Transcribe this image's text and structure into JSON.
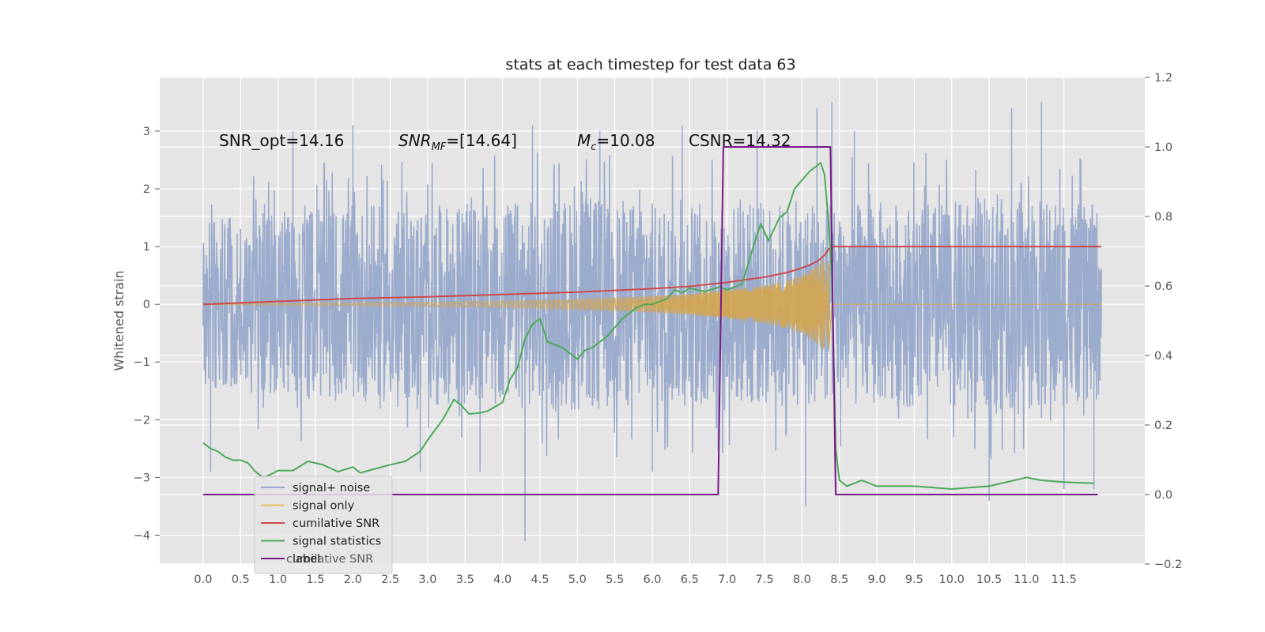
{
  "chart_data": {
    "type": "line",
    "title": "stats at each timestep for test data 63",
    "ylabel": "Whitened strain",
    "ylabel_right": "",
    "xlabel": "",
    "xlim": [
      -0.58,
      12.58
    ],
    "ylim": [
      -4.5,
      3.93
    ],
    "ylim_right": [
      -0.2,
      1.2
    ],
    "x_ticks": [
      "0.0",
      "0.5",
      "1.0",
      "1.5",
      "2.0",
      "2.5",
      "3.0",
      "3.5",
      "4.0",
      "4.5",
      "5.0",
      "5.5",
      "6.0",
      "6.5",
      "7.0",
      "7.5",
      "8.0",
      "8.5",
      "9.0",
      "9.5",
      "10.0",
      "10.5",
      "11.0",
      "11.5"
    ],
    "y_ticks": [
      "−4",
      "−3",
      "−2",
      "−1",
      "0",
      "1",
      "2",
      "3"
    ],
    "y_ticks_right": [
      "−0.2",
      "0.0",
      "0.2",
      "0.4",
      "0.6",
      "0.8",
      "1.0",
      "1.2"
    ],
    "grid": true,
    "legend_position": "lower-left",
    "background": "#e5e5e5",
    "annotations": {
      "snr_opt": "SNR_opt=14.16",
      "snr_mf_base": "SNR",
      "snr_mf_sub": "MF",
      "snr_mf_value": "=[14.64]",
      "mc_base": "M",
      "mc_sub": "c",
      "mc_value": "=10.08",
      "csnr": "CSNR=14.32"
    },
    "legend": [
      "signal+ noise",
      "signal only",
      "cumilative SNR",
      "signal statistics",
      "label",
      "cumilative SNR"
    ],
    "series": [
      {
        "name": "signal+ noise",
        "color": "#98a9cb",
        "axis": "left",
        "envelope": [
          [
            0.0,
            1.7
          ],
          [
            1.0,
            1.9
          ],
          [
            2.0,
            2.0
          ],
          [
            3.0,
            2.0
          ],
          [
            4.0,
            2.1
          ],
          [
            5.0,
            2.2
          ],
          [
            6.0,
            2.1
          ],
          [
            7.0,
            2.1
          ],
          [
            8.0,
            2.1
          ],
          [
            9.0,
            2.1
          ],
          [
            10.0,
            2.1
          ],
          [
            11.0,
            2.2
          ],
          [
            12.0,
            2.0
          ]
        ],
        "peaks": [
          [
            0.1,
            -2.9
          ],
          [
            1.2,
            3.0
          ],
          [
            2.0,
            3.1
          ],
          [
            2.9,
            -2.9
          ],
          [
            3.7,
            -2.9
          ],
          [
            4.3,
            -4.1
          ],
          [
            4.4,
            3.1
          ],
          [
            5.3,
            3.0
          ],
          [
            6.0,
            -2.9
          ],
          [
            6.4,
            3.1
          ],
          [
            7.4,
            3.0
          ],
          [
            8.05,
            -3.5
          ],
          [
            8.2,
            3.4
          ],
          [
            8.4,
            3.5
          ],
          [
            8.7,
            3.0
          ],
          [
            10.5,
            -3.4
          ],
          [
            10.8,
            3.4
          ],
          [
            11.2,
            3.5
          ],
          [
            11.5,
            -3.2
          ],
          [
            11.9,
            -3.2
          ]
        ]
      },
      {
        "name": "signal only",
        "color": "#d4a550",
        "axis": "left",
        "envelope": [
          [
            0.0,
            0.01
          ],
          [
            1.0,
            0.02
          ],
          [
            2.0,
            0.03
          ],
          [
            3.0,
            0.04
          ],
          [
            4.0,
            0.06
          ],
          [
            5.0,
            0.09
          ],
          [
            6.0,
            0.14
          ],
          [
            6.5,
            0.18
          ],
          [
            7.0,
            0.25
          ],
          [
            7.5,
            0.33
          ],
          [
            7.8,
            0.42
          ],
          [
            8.0,
            0.5
          ],
          [
            8.2,
            0.68
          ],
          [
            8.3,
            0.8
          ],
          [
            8.36,
            0.9
          ],
          [
            8.4,
            0.0
          ]
        ]
      },
      {
        "name": "cumilative SNR",
        "color": "#cc4b4b",
        "axis": "left",
        "x": [
          0.0,
          1.0,
          2.0,
          3.0,
          4.0,
          5.0,
          6.0,
          6.5,
          7.0,
          7.5,
          7.8,
          8.0,
          8.1,
          8.2,
          8.3,
          8.36,
          8.4,
          12.0
        ],
        "y": [
          0.0,
          0.05,
          0.1,
          0.13,
          0.17,
          0.21,
          0.27,
          0.31,
          0.38,
          0.47,
          0.55,
          0.63,
          0.68,
          0.74,
          0.85,
          0.96,
          1.0,
          1.0
        ]
      },
      {
        "name": "signal statistics",
        "color": "#4caa5a",
        "axis": "left",
        "x": [
          0.0,
          0.1,
          0.2,
          0.3,
          0.4,
          0.5,
          0.6,
          0.7,
          0.8,
          0.9,
          1.0,
          1.2,
          1.4,
          1.6,
          1.8,
          2.0,
          2.1,
          2.3,
          2.5,
          2.7,
          2.9,
          3.0,
          3.2,
          3.35,
          3.45,
          3.55,
          3.7,
          3.8,
          4.0,
          4.1,
          4.2,
          4.3,
          4.4,
          4.5,
          4.55,
          4.6,
          4.7,
          4.8,
          5.0,
          5.1,
          5.2,
          5.3,
          5.4,
          5.5,
          5.6,
          5.7,
          5.8,
          5.9,
          6.0,
          6.1,
          6.2,
          6.3,
          6.4,
          6.5,
          6.6,
          6.7,
          6.9,
          7.0,
          7.2,
          7.35,
          7.45,
          7.55,
          7.7,
          7.8,
          7.9,
          8.0,
          8.1,
          8.2,
          8.25,
          8.3,
          8.35,
          8.4,
          8.45,
          8.5,
          8.6,
          8.7,
          8.8,
          9.0,
          9.5,
          10.0,
          10.5,
          11.0,
          11.2,
          11.5,
          11.9
        ],
        "y": [
          -2.4,
          -2.5,
          -2.55,
          -2.65,
          -2.7,
          -2.7,
          -2.75,
          -2.9,
          -3.0,
          -2.95,
          -2.88,
          -2.88,
          -2.72,
          -2.78,
          -2.9,
          -2.82,
          -2.92,
          -2.85,
          -2.78,
          -2.72,
          -2.55,
          -2.35,
          -2.0,
          -1.65,
          -1.75,
          -1.9,
          -1.88,
          -1.85,
          -1.7,
          -1.3,
          -1.1,
          -0.6,
          -0.35,
          -0.25,
          -0.45,
          -0.65,
          -0.7,
          -0.75,
          -0.95,
          -0.8,
          -0.75,
          -0.65,
          -0.55,
          -0.4,
          -0.25,
          -0.15,
          -0.05,
          0.0,
          0.0,
          0.05,
          0.1,
          0.25,
          0.2,
          0.28,
          0.25,
          0.22,
          0.3,
          0.25,
          0.35,
          1.0,
          1.4,
          1.1,
          1.5,
          1.6,
          2.0,
          2.15,
          2.3,
          2.4,
          2.45,
          2.25,
          1.5,
          0.5,
          -2.5,
          -3.05,
          -3.15,
          -3.1,
          -3.05,
          -3.15,
          -3.15,
          -3.2,
          -3.15,
          -3.0,
          -3.05,
          -3.08,
          -3.1
        ]
      },
      {
        "name": "label",
        "color": "#7a1a8a",
        "axis": "right",
        "x": [
          0.0,
          6.88,
          6.95,
          8.38,
          8.45,
          11.95
        ],
        "y": [
          0.0,
          0.0,
          1.0,
          1.0,
          0.0,
          0.0
        ]
      }
    ]
  }
}
